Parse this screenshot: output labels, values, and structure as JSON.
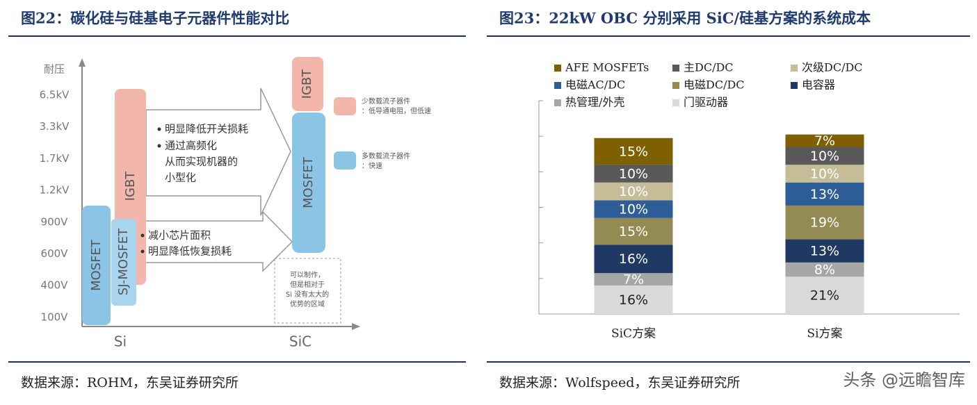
{
  "left_figure": {
    "title": "图22：碳化硅与硅基电子元器件性能对比",
    "y_axis_label": "耐压",
    "voltage_levels": [
      "6.5kV",
      "3.3kV",
      "1.7kV",
      "1.2kV",
      "900V",
      "600V",
      "400V",
      "100V"
    ],
    "x_labels": [
      "Si",
      "SiC"
    ],
    "devices": {
      "si_mosfet": "MOSFET",
      "sj_mosfet": "SJ-MOSFET",
      "si_igbt": "IGBT",
      "sic_igbt": "IGBT",
      "sic_mosfet": "MOSFET"
    },
    "upper_arrow_lines": [
      "明显降低开关损耗",
      "通过高频化",
      "从而实现机器的",
      "小型化"
    ],
    "lower_arrow_lines": [
      "减小芯片面积",
      "明显降低恢复损耗"
    ],
    "notes": [
      [
        "少数载流子器件",
        "：低导通电阻，但低速"
      ],
      [
        "多数载流子器件",
        "：快速"
      ]
    ],
    "region_lines": [
      "可以制作，",
      "但是相对于",
      "Si 没有太大的",
      "优势的区域"
    ],
    "source": "数据来源：ROHM，东吴证券研究所"
  },
  "chart_data": {
    "type": "stacked_bar",
    "title": "图23：22kW OBC 分别采用 SiC/硅基方案的系统成本",
    "categories": [
      "SiC方案",
      "Si方案"
    ],
    "series": [
      {
        "name": "AFE MOSFETs",
        "color": "#7f6000",
        "values": [
          15,
          7
        ],
        "value_labels": [
          "15%",
          "7%"
        ]
      },
      {
        "name": "主DC/DC",
        "color": "#595959",
        "values": [
          10,
          10
        ],
        "value_labels": [
          "10%",
          "10%"
        ]
      },
      {
        "name": "次级DC/DC",
        "color": "#c4bd97",
        "values": [
          10,
          10
        ],
        "value_labels": [
          "10%",
          "10%"
        ]
      },
      {
        "name": "电磁AC/DC",
        "color": "#2f5d97",
        "values": [
          10,
          13
        ],
        "value_labels": [
          "10%",
          "13%"
        ]
      },
      {
        "name": "电磁DC/DC",
        "color": "#948a54",
        "values": [
          15,
          19
        ],
        "value_labels": [
          "15%",
          "19%"
        ]
      },
      {
        "name": "电容器",
        "color": "#1f3864",
        "values": [
          16,
          13
        ],
        "value_labels": [
          "16%",
          "13%"
        ]
      },
      {
        "name": "热管理/外壳",
        "color": "#a6a6a6",
        "values": [
          7,
          8
        ],
        "value_labels": [
          "7%",
          "8%"
        ]
      },
      {
        "name": "门驱动器",
        "color": "#d9d9d9",
        "values": [
          16,
          21
        ],
        "value_labels": [
          "16%",
          "21%"
        ]
      }
    ],
    "ylim": [
      0,
      120
    ],
    "yticks": [
      0,
      20,
      40,
      60,
      80,
      100,
      120
    ],
    "source": "数据来源：Wolfspeed，东吴证券研究所"
  },
  "watermark": "头条 @远瞻智库"
}
